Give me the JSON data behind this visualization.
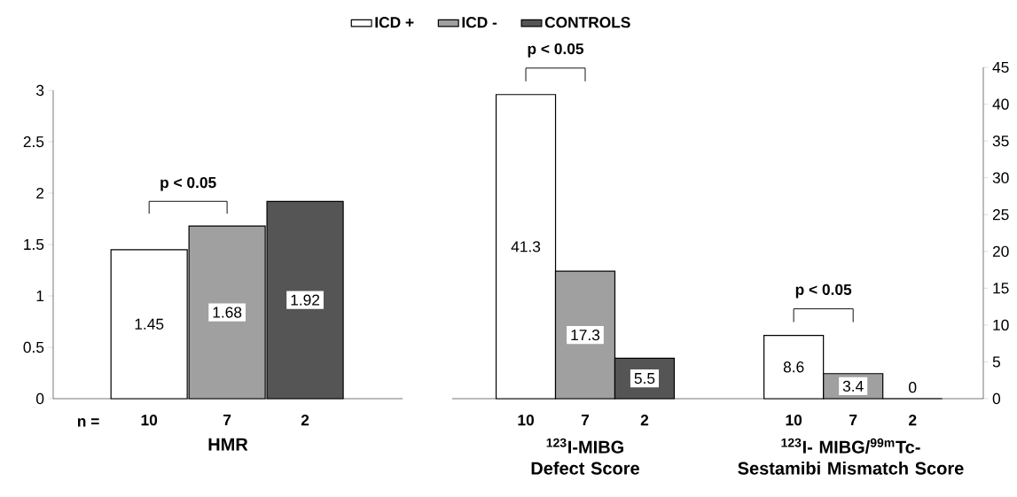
{
  "chart_data": [
    {
      "type": "bar",
      "categories": [
        "10",
        "7",
        "2"
      ],
      "xlabel": "HMR",
      "series": [
        {
          "name": "ICD +",
          "color": "#ffffff",
          "values": [
            1.45,
            null,
            null
          ]
        },
        {
          "name": "ICD -",
          "color": "#a0a0a0",
          "values": [
            null,
            1.68,
            null
          ]
        },
        {
          "name": "CONTROLS",
          "color": "#555555",
          "values": [
            null,
            null,
            1.92
          ]
        }
      ],
      "ylim": [
        0,
        3
      ],
      "yticks": [
        0,
        0.5,
        1,
        1.5,
        2,
        2.5,
        3
      ],
      "data_labels": true,
      "legend": "top",
      "annotations": [
        "n =",
        "p < 0.05"
      ]
    },
    {
      "type": "bar",
      "categories": [
        "10",
        "7",
        "2"
      ],
      "xlabel": "$^{123}$I-MIBG Defect Score",
      "series": [
        {
          "color": "#ffffff",
          "values": [
            41.3,
            null,
            null
          ],
          "axis": "y2"
        },
        {
          "color": "#a0a0a0",
          "values": [
            null,
            17.3,
            null
          ],
          "axis": "y2"
        },
        {
          "color": "#555555",
          "values": [
            null,
            null,
            5.5
          ],
          "axis": "y2"
        }
      ],
      "y2lim": [
        0,
        45
      ],
      "y2ticks": [
        0,
        5,
        10,
        15,
        20,
        25,
        30,
        35,
        40,
        45
      ],
      "tick_labels": "x",
      "data_labels": true,
      "annotations": [
        "p < 0.05"
      ]
    },
    {
      "type": "bar",
      "categories": [
        "10",
        "7",
        "2"
      ],
      "xlabel": "$^{123}$I- MIBG/$^{99m}$Tc-Sestamibi Mismatch Score",
      "series": [
        {
          "color": "#ffffff",
          "values": [
            8.6,
            null,
            null
          ],
          "axis": "y2"
        },
        {
          "color": "#a0a0a0",
          "values": [
            null,
            3.4,
            null
          ],
          "axis": "y2"
        },
        {
          "color": "#555555",
          "values": [
            null,
            null,
            0
          ],
          "axis": "y2"
        }
      ],
      "y2lim": [
        0,
        45
      ],
      "y2ticks": [
        0,
        5,
        10,
        15,
        20,
        25,
        30,
        35,
        40,
        45
      ],
      "data_labels": true,
      "annotations": [
        "p < 0.05"
      ]
    }
  ]
}
